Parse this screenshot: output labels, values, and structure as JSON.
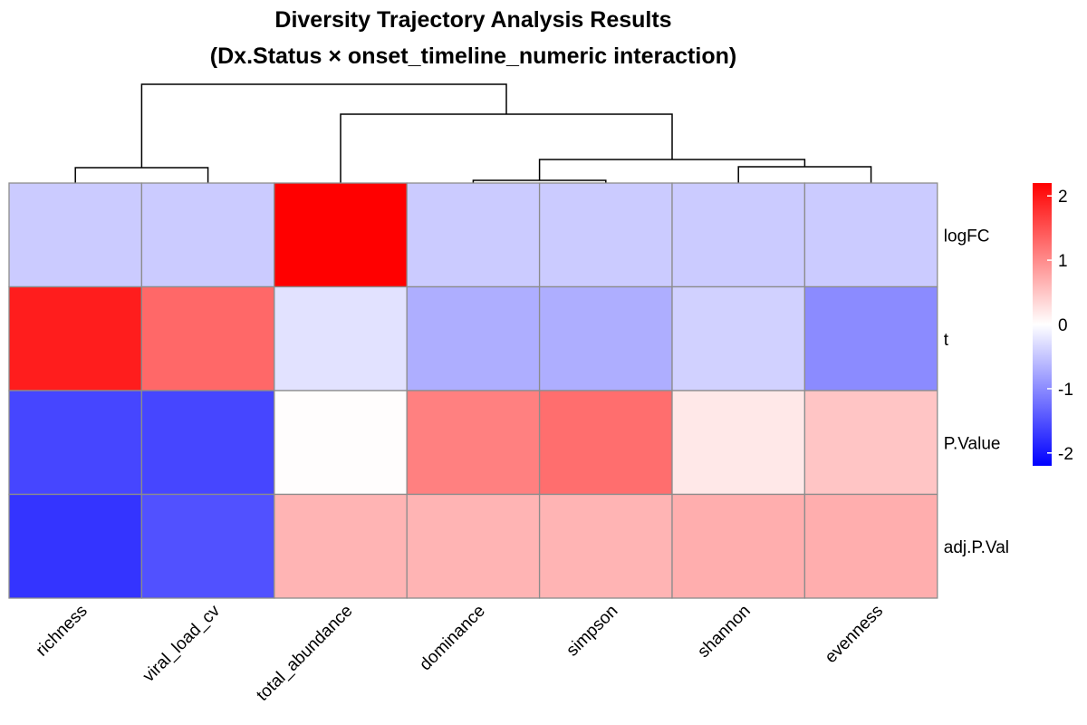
{
  "chart_data": {
    "type": "heatmap",
    "title_lines": [
      "Diversity Trajectory Analysis Results",
      "(Dx.Status × onset_timeline_numeric interaction)"
    ],
    "columns": [
      "richness",
      "viral_load_cv",
      "total_abundance",
      "dominance",
      "simpson",
      "shannon",
      "evenness"
    ],
    "rows": [
      "logFC",
      "t",
      "P.Value",
      "adj.P.Val"
    ],
    "values": [
      [
        -0.45,
        -0.45,
        2.2,
        -0.45,
        -0.45,
        -0.45,
        -0.45
      ],
      [
        1.95,
        1.3,
        -0.25,
        -0.7,
        -0.7,
        -0.4,
        -1.0
      ],
      [
        -1.6,
        -1.6,
        0.02,
        1.1,
        1.25,
        0.2,
        0.5
      ],
      [
        -1.75,
        -1.5,
        0.65,
        0.65,
        0.65,
        0.7,
        0.7
      ]
    ],
    "color_scale": {
      "min": -2.2,
      "max": 2.2,
      "low": "#0000ff",
      "mid": "#ffffff",
      "high": "#ff0000",
      "ticks": [
        2,
        1,
        0,
        -1,
        -2
      ]
    },
    "legend_position": "right",
    "column_dendrogram": true
  }
}
